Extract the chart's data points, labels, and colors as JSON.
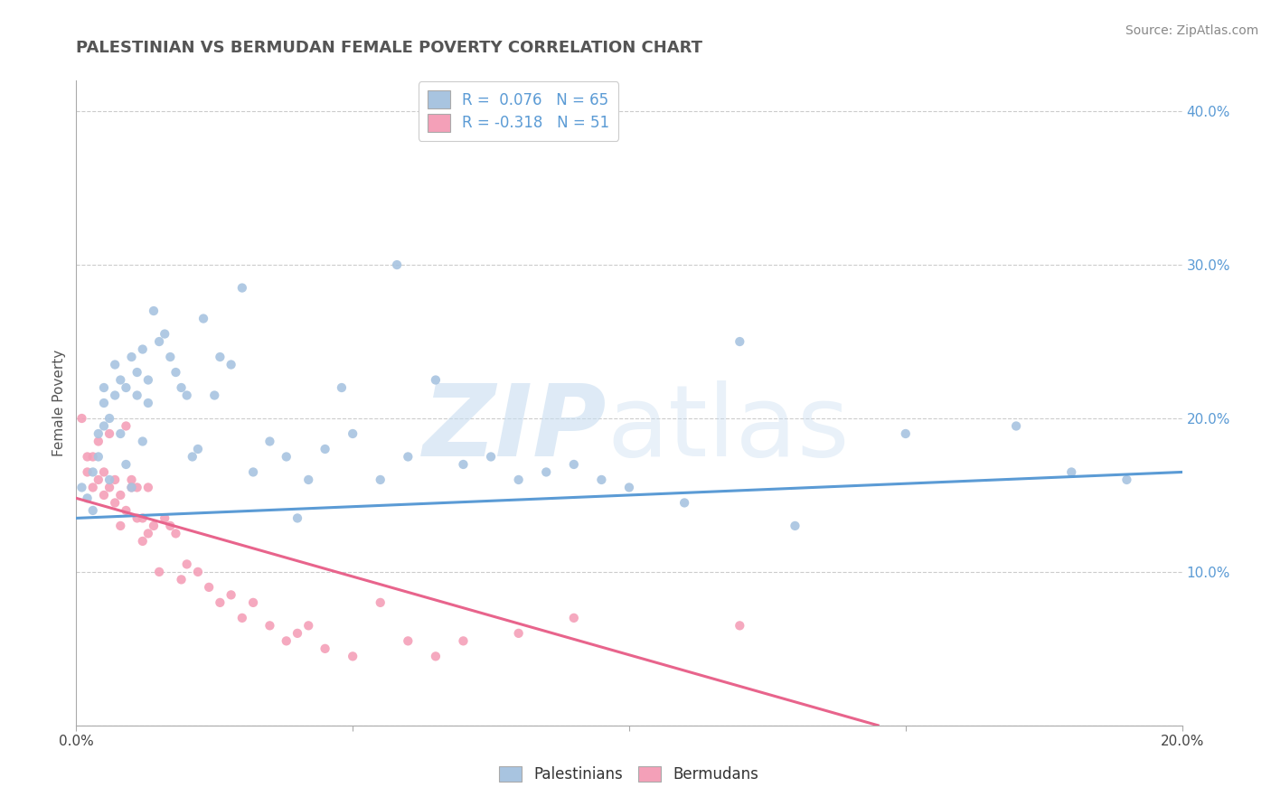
{
  "title": "PALESTINIAN VS BERMUDAN FEMALE POVERTY CORRELATION CHART",
  "source": "Source: ZipAtlas.com",
  "ylabel": "Female Poverty",
  "xlim": [
    0.0,
    0.2
  ],
  "ylim": [
    0.0,
    0.42
  ],
  "y_ticks": [
    0.0,
    0.1,
    0.2,
    0.3,
    0.4
  ],
  "y_tick_labels": [
    "",
    "10.0%",
    "20.0%",
    "30.0%",
    "40.0%"
  ],
  "x_tick_labels": [
    "0.0%",
    "",
    "",
    "",
    "20.0%"
  ],
  "pal_color": "#a8c4e0",
  "ber_color": "#f4a0b8",
  "pal_line_color": "#5b9bd5",
  "ber_line_color": "#e8648c",
  "legend_r1": "R =  0.076   N = 65",
  "legend_r2": "R = -0.318   N = 51",
  "pal_trendline_x": [
    0.0,
    0.2
  ],
  "pal_trendline_y": [
    0.135,
    0.165
  ],
  "ber_trendline_x": [
    0.0,
    0.145
  ],
  "ber_trendline_y": [
    0.148,
    0.0
  ],
  "palestinians_scatter_x": [
    0.001,
    0.002,
    0.003,
    0.003,
    0.004,
    0.004,
    0.005,
    0.005,
    0.005,
    0.006,
    0.006,
    0.007,
    0.007,
    0.008,
    0.008,
    0.009,
    0.009,
    0.01,
    0.01,
    0.011,
    0.011,
    0.012,
    0.012,
    0.013,
    0.013,
    0.014,
    0.015,
    0.016,
    0.017,
    0.018,
    0.019,
    0.02,
    0.021,
    0.022,
    0.023,
    0.025,
    0.026,
    0.028,
    0.03,
    0.032,
    0.035,
    0.038,
    0.04,
    0.042,
    0.045,
    0.048,
    0.05,
    0.055,
    0.058,
    0.06,
    0.065,
    0.07,
    0.075,
    0.08,
    0.085,
    0.09,
    0.095,
    0.1,
    0.11,
    0.12,
    0.13,
    0.15,
    0.17,
    0.18,
    0.19
  ],
  "palestinians_scatter_y": [
    0.155,
    0.148,
    0.14,
    0.165,
    0.175,
    0.19,
    0.195,
    0.21,
    0.22,
    0.16,
    0.2,
    0.215,
    0.235,
    0.19,
    0.225,
    0.17,
    0.22,
    0.155,
    0.24,
    0.23,
    0.215,
    0.245,
    0.185,
    0.225,
    0.21,
    0.27,
    0.25,
    0.255,
    0.24,
    0.23,
    0.22,
    0.215,
    0.175,
    0.18,
    0.265,
    0.215,
    0.24,
    0.235,
    0.285,
    0.165,
    0.185,
    0.175,
    0.135,
    0.16,
    0.18,
    0.22,
    0.19,
    0.16,
    0.3,
    0.175,
    0.225,
    0.17,
    0.175,
    0.16,
    0.165,
    0.17,
    0.16,
    0.155,
    0.145,
    0.25,
    0.13,
    0.19,
    0.195,
    0.165,
    0.16
  ],
  "bermudans_scatter_x": [
    0.001,
    0.002,
    0.002,
    0.003,
    0.003,
    0.004,
    0.004,
    0.005,
    0.005,
    0.006,
    0.006,
    0.007,
    0.007,
    0.008,
    0.008,
    0.009,
    0.009,
    0.01,
    0.01,
    0.011,
    0.011,
    0.012,
    0.012,
    0.013,
    0.013,
    0.014,
    0.015,
    0.016,
    0.017,
    0.018,
    0.019,
    0.02,
    0.022,
    0.024,
    0.026,
    0.028,
    0.03,
    0.032,
    0.035,
    0.038,
    0.04,
    0.042,
    0.045,
    0.05,
    0.055,
    0.06,
    0.065,
    0.07,
    0.08,
    0.09,
    0.12
  ],
  "bermudans_scatter_y": [
    0.2,
    0.165,
    0.175,
    0.155,
    0.175,
    0.16,
    0.185,
    0.15,
    0.165,
    0.155,
    0.19,
    0.145,
    0.16,
    0.13,
    0.15,
    0.14,
    0.195,
    0.155,
    0.16,
    0.135,
    0.155,
    0.12,
    0.135,
    0.125,
    0.155,
    0.13,
    0.1,
    0.135,
    0.13,
    0.125,
    0.095,
    0.105,
    0.1,
    0.09,
    0.08,
    0.085,
    0.07,
    0.08,
    0.065,
    0.055,
    0.06,
    0.065,
    0.05,
    0.045,
    0.08,
    0.055,
    0.045,
    0.055,
    0.06,
    0.07,
    0.065
  ]
}
